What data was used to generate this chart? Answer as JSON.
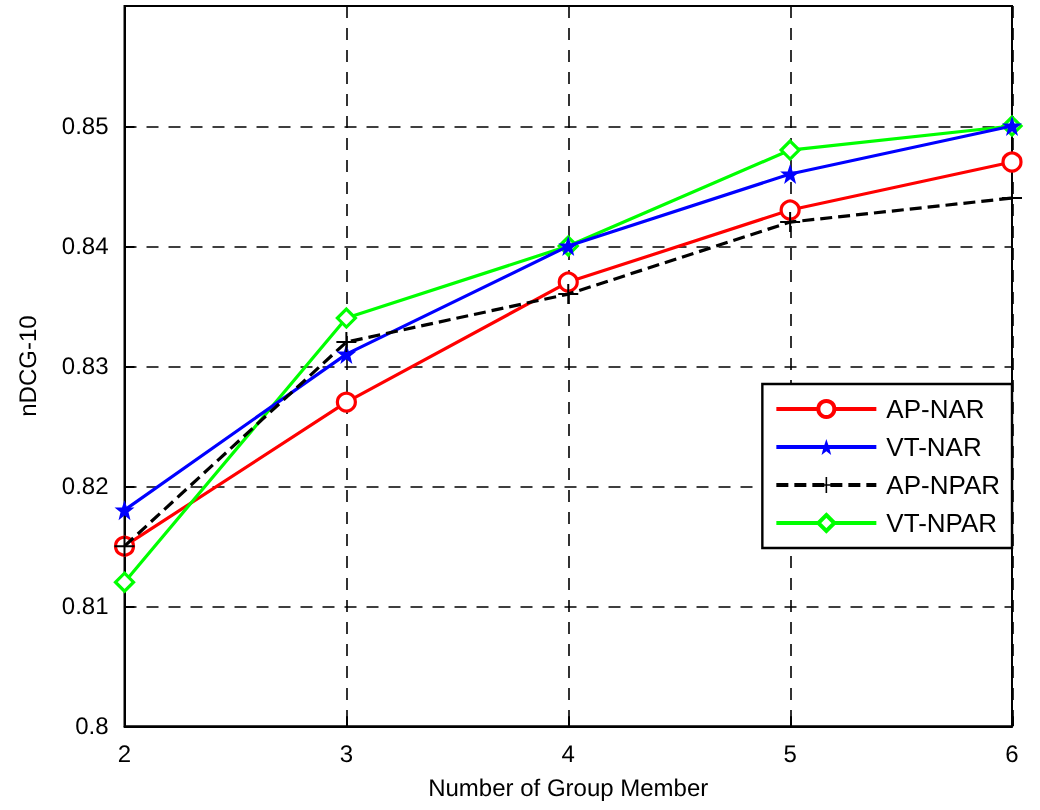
{
  "chart_data": {
    "type": "line",
    "xlabel": "Number of Group Member",
    "ylabel": "nDCG-10",
    "x": [
      2,
      3,
      4,
      5,
      6
    ],
    "xlim": [
      2,
      6
    ],
    "xticks": [
      2,
      3,
      4,
      5,
      6
    ],
    "ylim": [
      0.8,
      0.86
    ],
    "yticks": [
      0.8,
      0.81,
      0.82,
      0.83,
      0.84,
      0.85
    ],
    "grid": true,
    "legend": "right",
    "series": [
      {
        "name": "AP-NAR",
        "color": "#ff0000",
        "marker": "circle",
        "line_style": "solid",
        "values": [
          0.815,
          0.827,
          0.837,
          0.843,
          0.847
        ]
      },
      {
        "name": "VT-NAR",
        "color": "#0000ff",
        "marker": "star",
        "line_style": "solid",
        "values": [
          0.818,
          0.831,
          0.84,
          0.846,
          0.85
        ]
      },
      {
        "name": "AP-NPAR",
        "color": "#000000",
        "marker": "cross",
        "line_style": "dashed",
        "values": [
          0.815,
          0.832,
          0.836,
          0.842,
          0.844
        ]
      },
      {
        "name": "VT-NPAR",
        "color": "#00ff00",
        "marker": "diamond",
        "line_style": "solid",
        "values": [
          0.812,
          0.834,
          0.84,
          0.848,
          0.85
        ]
      }
    ]
  }
}
